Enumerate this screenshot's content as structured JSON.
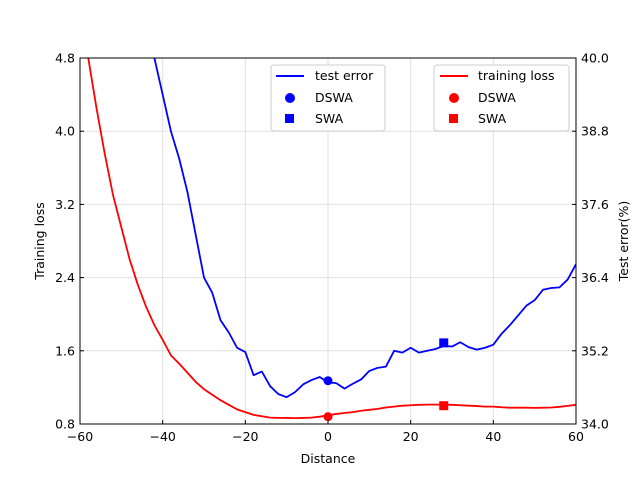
{
  "chart_data": {
    "type": "line",
    "xlabel": "Distance",
    "ylabel_left": "Training loss",
    "ylabel_right": "Test error(%)",
    "xlim": [
      -60,
      60
    ],
    "ylim_left": [
      0.8,
      4.8
    ],
    "ylim_right": [
      34.0,
      40.0
    ],
    "xticks": [
      -60,
      -40,
      -20,
      0,
      20,
      40,
      60
    ],
    "yticks_left": [
      0.8,
      1.6,
      2.4,
      3.2,
      4.0,
      4.8
    ],
    "yticks_right": [
      34.0,
      35.2,
      36.4,
      37.6,
      38.8,
      40.0
    ],
    "xtick_labels": [
      "−60",
      "−40",
      "−20",
      "0",
      "20",
      "40",
      "60"
    ],
    "ytick_labels_left": [
      "0.8",
      "1.6",
      "2.4",
      "3.2",
      "4.0",
      "4.8"
    ],
    "ytick_labels_right": [
      "34.0",
      "35.2",
      "36.4",
      "37.6",
      "38.8",
      "40.0"
    ],
    "grid": true,
    "legends": [
      {
        "placement": "top-center",
        "entries": [
          "test error",
          "DSWA",
          "SWA"
        ]
      },
      {
        "placement": "top-right",
        "entries": [
          "training loss",
          "DSWA",
          "SWA"
        ]
      }
    ],
    "series": [
      {
        "name": "test error",
        "axis": "right",
        "color": "#0000ff",
        "x": [
          -42,
          -38,
          -36,
          -34,
          -32,
          -30,
          -28,
          -26,
          -24,
          -22,
          -20,
          -18,
          -16,
          -14,
          -12,
          -10,
          -8,
          -6,
          -4,
          -2,
          0,
          2,
          4,
          6,
          8,
          10,
          12,
          14,
          16,
          18,
          20,
          22,
          24,
          26,
          28,
          30,
          32,
          34,
          36,
          38,
          40,
          42,
          44,
          46,
          48,
          50,
          52,
          54,
          56,
          58,
          60
        ],
        "y": [
          40.0,
          38.8,
          38.35,
          37.8,
          37.1,
          36.4,
          36.15,
          35.7,
          35.5,
          35.25,
          35.18,
          34.8,
          34.86,
          34.62,
          34.49,
          34.44,
          34.52,
          34.65,
          34.72,
          34.77,
          34.68,
          34.67,
          34.58,
          34.66,
          34.73,
          34.87,
          34.92,
          34.94,
          35.2,
          35.17,
          35.25,
          35.17,
          35.2,
          35.23,
          35.28,
          35.27,
          35.34,
          35.26,
          35.22,
          35.25,
          35.3,
          35.48,
          35.62,
          35.78,
          35.94,
          36.03,
          36.2,
          36.23,
          36.24,
          36.37,
          36.62
        ]
      },
      {
        "name": "training loss",
        "axis": "left",
        "color": "#ff0000",
        "x": [
          -58,
          -56,
          -54,
          -52,
          -50,
          -48,
          -46,
          -44,
          -42,
          -40,
          -38,
          -36,
          -34,
          -32,
          -30,
          -28,
          -26,
          -24,
          -22,
          -20,
          -18,
          -16,
          -14,
          -12,
          -10,
          -8,
          -6,
          -4,
          -2,
          0,
          2,
          4,
          6,
          8,
          10,
          12,
          14,
          16,
          18,
          20,
          22,
          24,
          26,
          28,
          30,
          32,
          34,
          36,
          38,
          40,
          42,
          44,
          46,
          48,
          50,
          52,
          54,
          56,
          58,
          60
        ],
        "y": [
          4.8,
          4.25,
          3.75,
          3.3,
          2.95,
          2.6,
          2.32,
          2.08,
          1.88,
          1.72,
          1.55,
          1.46,
          1.36,
          1.26,
          1.18,
          1.12,
          1.06,
          1.01,
          0.96,
          0.93,
          0.9,
          0.885,
          0.87,
          0.867,
          0.866,
          0.864,
          0.866,
          0.87,
          0.88,
          0.895,
          0.91,
          0.92,
          0.93,
          0.945,
          0.955,
          0.965,
          0.98,
          0.99,
          1.0,
          1.005,
          1.01,
          1.012,
          1.012,
          1.012,
          1.01,
          1.005,
          1.0,
          0.996,
          0.99,
          0.99,
          0.983,
          0.978,
          0.978,
          0.978,
          0.976,
          0.978,
          0.98,
          0.988,
          0.998,
          1.01
        ]
      }
    ],
    "markers": [
      {
        "series": "test error",
        "label": "DSWA",
        "shape": "circle",
        "color": "#0000ff",
        "axis": "right",
        "x": 0,
        "y": 34.71
      },
      {
        "series": "test error",
        "label": "SWA",
        "shape": "square",
        "color": "#0000ff",
        "axis": "right",
        "x": 28,
        "y": 35.33
      },
      {
        "series": "training loss",
        "label": "DSWA",
        "shape": "circle",
        "color": "#ff0000",
        "axis": "left",
        "x": 0,
        "y": 0.88
      },
      {
        "series": "training loss",
        "label": "SWA",
        "shape": "square",
        "color": "#ff0000",
        "axis": "left",
        "x": 28,
        "y": 1.0
      }
    ]
  }
}
